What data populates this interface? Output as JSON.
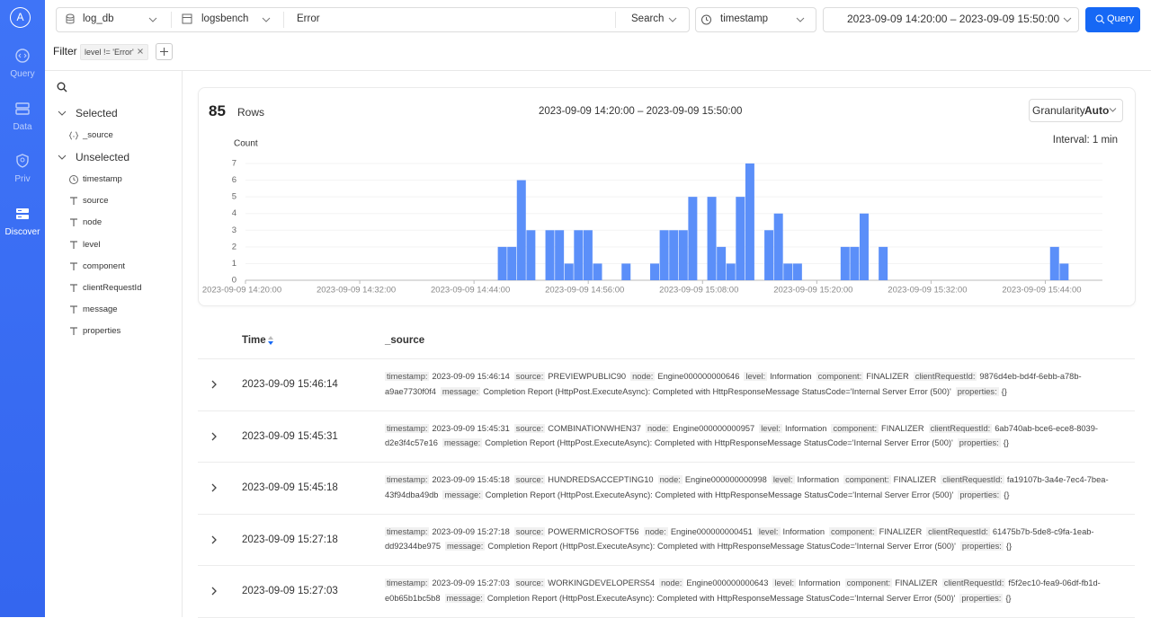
{
  "sidebar": {
    "avatar": "A",
    "nav": [
      {
        "label": "Query"
      },
      {
        "label": "Data"
      },
      {
        "label": "Priv"
      },
      {
        "label": "Discover",
        "active": true
      }
    ]
  },
  "toolbar": {
    "database": "log_db",
    "table": "logsbench",
    "query": "Error",
    "mode": "Search",
    "time_field": "timestamp",
    "time_range": "2023-09-09 14:20:00 – 2023-09-09 15:50:00",
    "button": "Query"
  },
  "filter": {
    "label": "Filter",
    "tags": [
      "level != 'Error'"
    ]
  },
  "fields": {
    "selected_label": "Selected",
    "selected": [
      {
        "name": "_source",
        "kind": "object"
      }
    ],
    "unselected_label": "Unselected",
    "unselected": [
      {
        "name": "timestamp",
        "kind": "time"
      },
      {
        "name": "source",
        "kind": "text"
      },
      {
        "name": "node",
        "kind": "text"
      },
      {
        "name": "level",
        "kind": "text"
      },
      {
        "name": "component",
        "kind": "text"
      },
      {
        "name": "clientRequestId",
        "kind": "text"
      },
      {
        "name": "message",
        "kind": "text"
      },
      {
        "name": "properties",
        "kind": "text"
      }
    ]
  },
  "summary": {
    "count": 85,
    "count_label": "Rows",
    "range": "2023-09-09 14:20:00 – 2023-09-09 15:50:00",
    "granularity_label": "Granularity",
    "granularity": "Auto",
    "interval": "Interval: 1 min"
  },
  "chart_data": {
    "type": "bar",
    "ylabel": "Count",
    "color": "#5b8ff9",
    "grid": true,
    "x": [
      "2023-09-09 14:47:00",
      "2023-09-09 14:48:00",
      "2023-09-09 14:49:00",
      "2023-09-09 14:50:00",
      "2023-09-09 14:52:00",
      "2023-09-09 14:53:00",
      "2023-09-09 14:54:00",
      "2023-09-09 14:55:00",
      "2023-09-09 14:56:00",
      "2023-09-09 14:57:00",
      "2023-09-09 15:00:00",
      "2023-09-09 15:03:00",
      "2023-09-09 15:04:00",
      "2023-09-09 15:05:00",
      "2023-09-09 15:06:00",
      "2023-09-09 15:07:00",
      "2023-09-09 15:09:00",
      "2023-09-09 15:10:00",
      "2023-09-09 15:11:00",
      "2023-09-09 15:12:00",
      "2023-09-09 15:13:00",
      "2023-09-09 15:15:00",
      "2023-09-09 15:16:00",
      "2023-09-09 15:17:00",
      "2023-09-09 15:18:00",
      "2023-09-09 15:23:00",
      "2023-09-09 15:24:00",
      "2023-09-09 15:25:00",
      "2023-09-09 15:27:00",
      "2023-09-09 15:45:00",
      "2023-09-09 15:46:00"
    ],
    "values": [
      2,
      2,
      6,
      3,
      3,
      3,
      1,
      3,
      3,
      1,
      1,
      1,
      3,
      3,
      3,
      5,
      5,
      2,
      1,
      5,
      7,
      3,
      4,
      1,
      1,
      2,
      2,
      4,
      2,
      2,
      1
    ],
    "xlim": [
      "2023-09-09 14:20:00",
      "2023-09-09 15:50:00"
    ],
    "xticks": [
      "2023-09-09 14:20:00",
      "2023-09-09 14:32:00",
      "2023-09-09 14:44:00",
      "2023-09-09 14:56:00",
      "2023-09-09 15:08:00",
      "2023-09-09 15:20:00",
      "2023-09-09 15:32:00",
      "2023-09-09 15:44:00"
    ],
    "ylim": [
      0,
      7
    ],
    "yticks": [
      0,
      1,
      2,
      3,
      4,
      5,
      6,
      7
    ]
  },
  "table": {
    "columns": [
      "Time",
      "_source"
    ],
    "rows": [
      {
        "time": "2023-09-09 15:46:14",
        "fields": [
          {
            "key": "timestamp:",
            "value": "2023-09-09 15:46:14"
          },
          {
            "key": "source:",
            "value": "PREVIEWPUBLIC90"
          },
          {
            "key": "node:",
            "value": "Engine000000000646"
          },
          {
            "key": "level:",
            "value": "Information"
          },
          {
            "key": "component:",
            "value": "FINALIZER"
          },
          {
            "key": "clientRequestId:",
            "value": "9876d4eb-bd4f-6ebb-a78b-a9ae7730f0f4"
          },
          {
            "key": "message:",
            "value": "Completion Report (HttpPost.ExecuteAsync): Completed with HttpResponseMessage StatusCode='Internal Server Error (500)'"
          },
          {
            "key": "properties:",
            "value": "{}"
          }
        ]
      },
      {
        "time": "2023-09-09 15:45:31",
        "fields": [
          {
            "key": "timestamp:",
            "value": "2023-09-09 15:45:31"
          },
          {
            "key": "source:",
            "value": "COMBINATIONWHEN37"
          },
          {
            "key": "node:",
            "value": "Engine000000000957"
          },
          {
            "key": "level:",
            "value": "Information"
          },
          {
            "key": "component:",
            "value": "FINALIZER"
          },
          {
            "key": "clientRequestId:",
            "value": "6ab740ab-bce6-ece8-8039-d2e3f4c57e16"
          },
          {
            "key": "message:",
            "value": "Completion Report (HttpPost.ExecuteAsync): Completed with HttpResponseMessage StatusCode='Internal Server Error (500)'"
          },
          {
            "key": "properties:",
            "value": "{}"
          }
        ]
      },
      {
        "time": "2023-09-09 15:45:18",
        "fields": [
          {
            "key": "timestamp:",
            "value": "2023-09-09 15:45:18"
          },
          {
            "key": "source:",
            "value": "HUNDREDSACCEPTING10"
          },
          {
            "key": "node:",
            "value": "Engine000000000998"
          },
          {
            "key": "level:",
            "value": "Information"
          },
          {
            "key": "component:",
            "value": "FINALIZER"
          },
          {
            "key": "clientRequestId:",
            "value": "fa19107b-3a4e-7ec4-7bea-43f94dba49db"
          },
          {
            "key": "message:",
            "value": "Completion Report (HttpPost.ExecuteAsync): Completed with HttpResponseMessage StatusCode='Internal Server Error (500)'"
          },
          {
            "key": "properties:",
            "value": "{}"
          }
        ]
      },
      {
        "time": "2023-09-09 15:27:18",
        "fields": [
          {
            "key": "timestamp:",
            "value": "2023-09-09 15:27:18"
          },
          {
            "key": "source:",
            "value": "POWERMICROSOFT56"
          },
          {
            "key": "node:",
            "value": "Engine000000000451"
          },
          {
            "key": "level:",
            "value": "Information"
          },
          {
            "key": "component:",
            "value": "FINALIZER"
          },
          {
            "key": "clientRequestId:",
            "value": "61475b7b-5de8-c9fa-1eab-dd92344be975"
          },
          {
            "key": "message:",
            "value": "Completion Report (HttpPost.ExecuteAsync): Completed with HttpResponseMessage StatusCode='Internal Server Error (500)'"
          },
          {
            "key": "properties:",
            "value": "{}"
          }
        ]
      },
      {
        "time": "2023-09-09 15:27:03",
        "fields": [
          {
            "key": "timestamp:",
            "value": "2023-09-09 15:27:03"
          },
          {
            "key": "source:",
            "value": "WORKINGDEVELOPERS54"
          },
          {
            "key": "node:",
            "value": "Engine000000000643"
          },
          {
            "key": "level:",
            "value": "Information"
          },
          {
            "key": "component:",
            "value": "FINALIZER"
          },
          {
            "key": "clientRequestId:",
            "value": "f5f2ec10-fea9-06df-fb1d-e0b65b1bc5b8"
          },
          {
            "key": "message:",
            "value": "Completion Report (HttpPost.ExecuteAsync): Completed with HttpResponseMessage StatusCode='Internal Server Error (500)'"
          },
          {
            "key": "properties:",
            "value": "{}"
          }
        ]
      }
    ]
  }
}
